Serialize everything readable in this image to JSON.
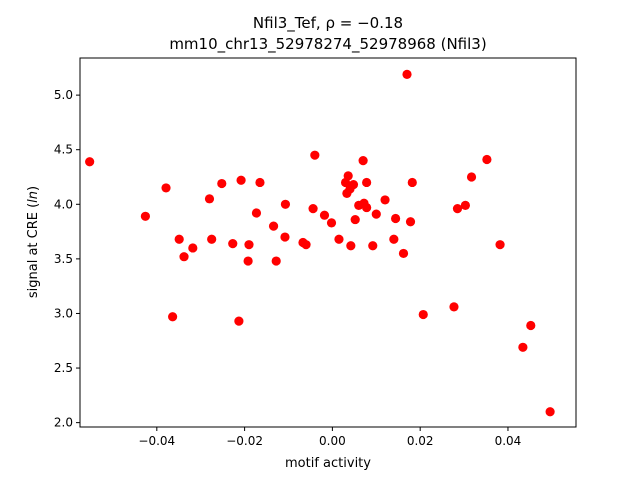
{
  "chart_data": {
    "type": "scatter",
    "title_line1": "Nfil3_Tef, ρ = −0.18",
    "title_line2": "mm10_chr13_52978274_52978968 (Nfil3)",
    "xlabel": "motif activity",
    "ylabel": "signal at CRE (ln)",
    "xlim": [
      -0.0575,
      0.0555
    ],
    "ylim": [
      1.96,
      5.34
    ],
    "xticks": [
      -0.04,
      -0.02,
      0.0,
      0.02,
      0.04
    ],
    "xtick_labels": [
      "−0.04",
      "−0.02",
      "0.00",
      "0.02",
      "0.04"
    ],
    "yticks": [
      2.0,
      2.5,
      3.0,
      3.5,
      4.0,
      4.5,
      5.0
    ],
    "ytick_labels": [
      "2.0",
      "2.5",
      "3.0",
      "3.5",
      "4.0",
      "4.5",
      "5.0"
    ],
    "marker_color": "#ff0000",
    "grid": false,
    "points": [
      {
        "x": -0.0553,
        "y": 4.39
      },
      {
        "x": -0.0426,
        "y": 3.89
      },
      {
        "x": -0.0379,
        "y": 4.15
      },
      {
        "x": -0.0364,
        "y": 2.97
      },
      {
        "x": -0.0349,
        "y": 3.68
      },
      {
        "x": -0.0338,
        "y": 3.52
      },
      {
        "x": -0.0318,
        "y": 3.6
      },
      {
        "x": -0.028,
        "y": 4.05
      },
      {
        "x": -0.0275,
        "y": 3.68
      },
      {
        "x": -0.0252,
        "y": 4.19
      },
      {
        "x": -0.0227,
        "y": 3.64
      },
      {
        "x": -0.0213,
        "y": 2.93
      },
      {
        "x": -0.0208,
        "y": 4.22
      },
      {
        "x": -0.0192,
        "y": 3.48
      },
      {
        "x": -0.019,
        "y": 3.63
      },
      {
        "x": -0.0173,
        "y": 3.92
      },
      {
        "x": -0.0165,
        "y": 4.2
      },
      {
        "x": -0.0134,
        "y": 3.8
      },
      {
        "x": -0.0128,
        "y": 3.48
      },
      {
        "x": -0.0107,
        "y": 4.0
      },
      {
        "x": -0.0108,
        "y": 3.7
      },
      {
        "x": -0.0067,
        "y": 3.65
      },
      {
        "x": -0.006,
        "y": 3.63
      },
      {
        "x": -0.0044,
        "y": 3.96
      },
      {
        "x": -0.004,
        "y": 4.45
      },
      {
        "x": -0.0018,
        "y": 3.9
      },
      {
        "x": -0.0002,
        "y": 3.83
      },
      {
        "x": 0.0015,
        "y": 3.68
      },
      {
        "x": 0.003,
        "y": 4.2
      },
      {
        "x": 0.0033,
        "y": 4.1
      },
      {
        "x": 0.0036,
        "y": 4.26
      },
      {
        "x": 0.004,
        "y": 4.14
      },
      {
        "x": 0.0042,
        "y": 3.62
      },
      {
        "x": 0.0048,
        "y": 4.18
      },
      {
        "x": 0.0052,
        "y": 3.86
      },
      {
        "x": 0.006,
        "y": 3.99
      },
      {
        "x": 0.007,
        "y": 4.4
      },
      {
        "x": 0.0072,
        "y": 4.01
      },
      {
        "x": 0.0078,
        "y": 4.2
      },
      {
        "x": 0.0078,
        "y": 3.97
      },
      {
        "x": 0.0092,
        "y": 3.62
      },
      {
        "x": 0.01,
        "y": 3.91
      },
      {
        "x": 0.012,
        "y": 4.04
      },
      {
        "x": 0.014,
        "y": 3.68
      },
      {
        "x": 0.0144,
        "y": 3.87
      },
      {
        "x": 0.0162,
        "y": 3.55
      },
      {
        "x": 0.017,
        "y": 5.19
      },
      {
        "x": 0.0178,
        "y": 3.84
      },
      {
        "x": 0.0182,
        "y": 4.2
      },
      {
        "x": 0.0207,
        "y": 2.99
      },
      {
        "x": 0.0277,
        "y": 3.06
      },
      {
        "x": 0.0285,
        "y": 3.96
      },
      {
        "x": 0.0303,
        "y": 3.99
      },
      {
        "x": 0.0317,
        "y": 4.25
      },
      {
        "x": 0.0352,
        "y": 4.41
      },
      {
        "x": 0.0382,
        "y": 3.63
      },
      {
        "x": 0.0434,
        "y": 2.69
      },
      {
        "x": 0.0452,
        "y": 2.89
      },
      {
        "x": 0.0496,
        "y": 2.1
      }
    ]
  }
}
